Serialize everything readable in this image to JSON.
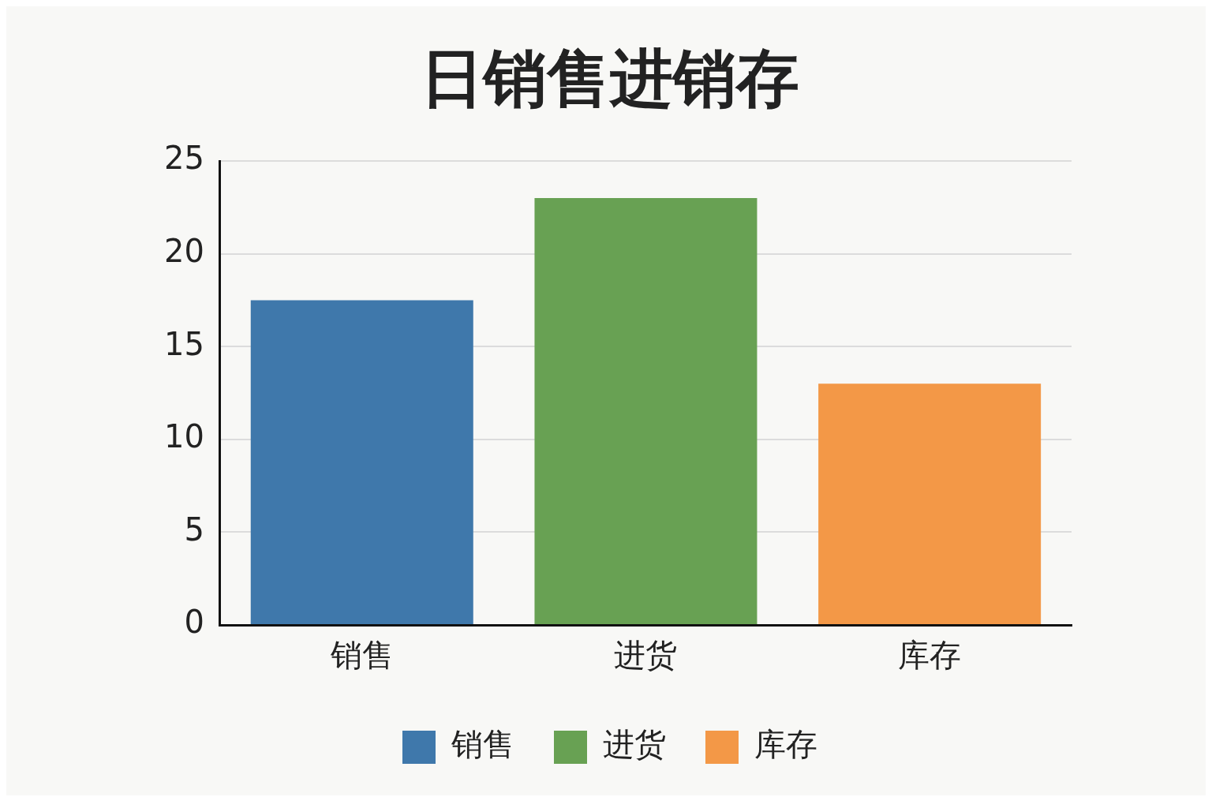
{
  "chart_data": {
    "type": "bar",
    "title": "日销售进销存",
    "categories": [
      "销售",
      "进货",
      "库存"
    ],
    "series": [
      {
        "name": "销售",
        "color": "#3f78ab",
        "values": [
          17.5,
          null,
          null
        ]
      },
      {
        "name": "进货",
        "color": "#68a153",
        "values": [
          null,
          23,
          null
        ]
      },
      {
        "name": "库存",
        "color": "#f39847",
        "values": [
          null,
          null,
          13
        ]
      }
    ],
    "ylim": [
      0,
      25
    ],
    "yticks": [
      0,
      5,
      10,
      15,
      20,
      25
    ],
    "grid": "y",
    "legend": "bottom"
  }
}
